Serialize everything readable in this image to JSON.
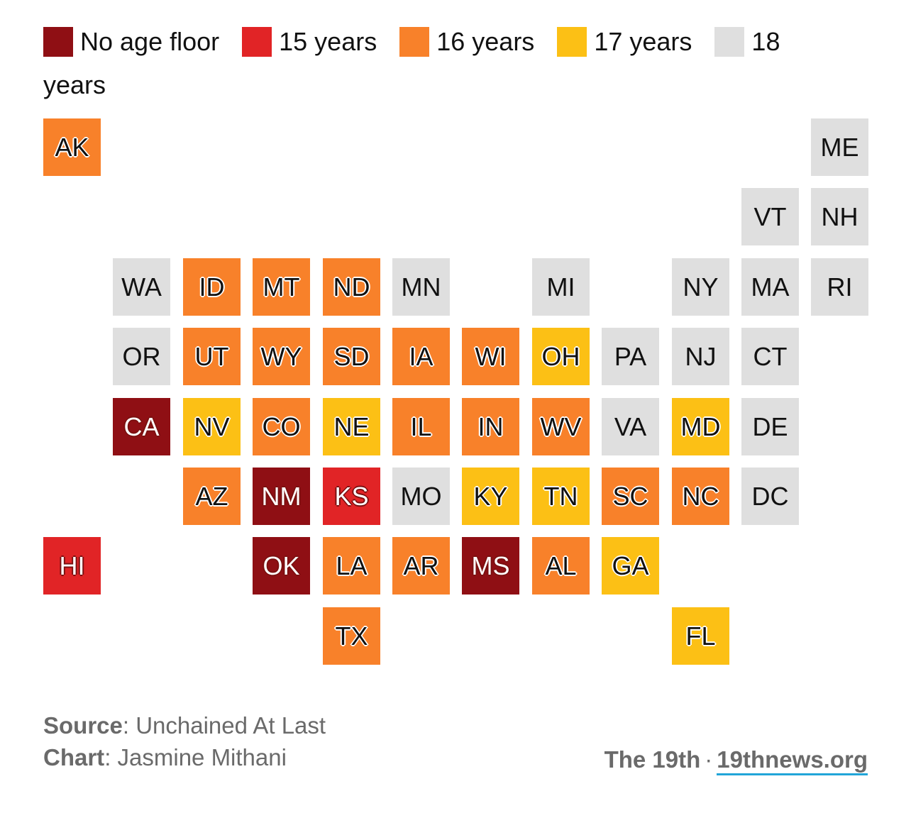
{
  "legend": [
    {
      "label": "No age floor",
      "color": "#8f0f14"
    },
    {
      "label": "15 years",
      "color": "#e12426"
    },
    {
      "label": "16 years",
      "color": "#f8812a"
    },
    {
      "label": "17 years",
      "color": "#fcc015"
    },
    {
      "label": "18 years",
      "color": "#dfdfdf"
    }
  ],
  "chart_data": {
    "type": "tile-map",
    "categories": [
      "No age floor",
      "15 years",
      "16 years",
      "17 years",
      "18 years"
    ],
    "states": [
      {
        "abbr": "AK",
        "col": 0,
        "row": 0,
        "category": "16 years"
      },
      {
        "abbr": "ME",
        "col": 11,
        "row": 0,
        "category": "18 years"
      },
      {
        "abbr": "VT",
        "col": 10,
        "row": 1,
        "category": "18 years"
      },
      {
        "abbr": "NH",
        "col": 11,
        "row": 1,
        "category": "18 years"
      },
      {
        "abbr": "WA",
        "col": 1,
        "row": 2,
        "category": "18 years"
      },
      {
        "abbr": "ID",
        "col": 2,
        "row": 2,
        "category": "16 years"
      },
      {
        "abbr": "MT",
        "col": 3,
        "row": 2,
        "category": "16 years"
      },
      {
        "abbr": "ND",
        "col": 4,
        "row": 2,
        "category": "16 years"
      },
      {
        "abbr": "MN",
        "col": 5,
        "row": 2,
        "category": "18 years"
      },
      {
        "abbr": "MI",
        "col": 7,
        "row": 2,
        "category": "18 years"
      },
      {
        "abbr": "NY",
        "col": 9,
        "row": 2,
        "category": "18 years"
      },
      {
        "abbr": "MA",
        "col": 10,
        "row": 2,
        "category": "18 years"
      },
      {
        "abbr": "RI",
        "col": 11,
        "row": 2,
        "category": "18 years"
      },
      {
        "abbr": "OR",
        "col": 1,
        "row": 3,
        "category": "18 years"
      },
      {
        "abbr": "UT",
        "col": 2,
        "row": 3,
        "category": "16 years"
      },
      {
        "abbr": "WY",
        "col": 3,
        "row": 3,
        "category": "16 years"
      },
      {
        "abbr": "SD",
        "col": 4,
        "row": 3,
        "category": "16 years"
      },
      {
        "abbr": "IA",
        "col": 5,
        "row": 3,
        "category": "16 years"
      },
      {
        "abbr": "WI",
        "col": 6,
        "row": 3,
        "category": "16 years"
      },
      {
        "abbr": "OH",
        "col": 7,
        "row": 3,
        "category": "17 years"
      },
      {
        "abbr": "PA",
        "col": 8,
        "row": 3,
        "category": "18 years"
      },
      {
        "abbr": "NJ",
        "col": 9,
        "row": 3,
        "category": "18 years"
      },
      {
        "abbr": "CT",
        "col": 10,
        "row": 3,
        "category": "18 years"
      },
      {
        "abbr": "CA",
        "col": 1,
        "row": 4,
        "category": "No age floor"
      },
      {
        "abbr": "NV",
        "col": 2,
        "row": 4,
        "category": "17 years"
      },
      {
        "abbr": "CO",
        "col": 3,
        "row": 4,
        "category": "16 years"
      },
      {
        "abbr": "NE",
        "col": 4,
        "row": 4,
        "category": "17 years"
      },
      {
        "abbr": "IL",
        "col": 5,
        "row": 4,
        "category": "16 years"
      },
      {
        "abbr": "IN",
        "col": 6,
        "row": 4,
        "category": "16 years"
      },
      {
        "abbr": "WV",
        "col": 7,
        "row": 4,
        "category": "16 years"
      },
      {
        "abbr": "VA",
        "col": 8,
        "row": 4,
        "category": "18 years"
      },
      {
        "abbr": "MD",
        "col": 9,
        "row": 4,
        "category": "17 years"
      },
      {
        "abbr": "DE",
        "col": 10,
        "row": 4,
        "category": "18 years"
      },
      {
        "abbr": "AZ",
        "col": 2,
        "row": 5,
        "category": "16 years"
      },
      {
        "abbr": "NM",
        "col": 3,
        "row": 5,
        "category": "No age floor"
      },
      {
        "abbr": "KS",
        "col": 4,
        "row": 5,
        "category": "15 years"
      },
      {
        "abbr": "MO",
        "col": 5,
        "row": 5,
        "category": "18 years"
      },
      {
        "abbr": "KY",
        "col": 6,
        "row": 5,
        "category": "17 years"
      },
      {
        "abbr": "TN",
        "col": 7,
        "row": 5,
        "category": "17 years"
      },
      {
        "abbr": "SC",
        "col": 8,
        "row": 5,
        "category": "16 years"
      },
      {
        "abbr": "NC",
        "col": 9,
        "row": 5,
        "category": "16 years"
      },
      {
        "abbr": "DC",
        "col": 10,
        "row": 5,
        "category": "18 years"
      },
      {
        "abbr": "HI",
        "col": 0,
        "row": 6,
        "category": "15 years"
      },
      {
        "abbr": "OK",
        "col": 3,
        "row": 6,
        "category": "No age floor"
      },
      {
        "abbr": "LA",
        "col": 4,
        "row": 6,
        "category": "16 years"
      },
      {
        "abbr": "AR",
        "col": 5,
        "row": 6,
        "category": "16 years"
      },
      {
        "abbr": "MS",
        "col": 6,
        "row": 6,
        "category": "No age floor"
      },
      {
        "abbr": "AL",
        "col": 7,
        "row": 6,
        "category": "16 years"
      },
      {
        "abbr": "GA",
        "col": 8,
        "row": 6,
        "category": "17 years"
      },
      {
        "abbr": "TX",
        "col": 4,
        "row": 7,
        "category": "16 years"
      },
      {
        "abbr": "FL",
        "col": 9,
        "row": 7,
        "category": "17 years"
      }
    ]
  },
  "footer": {
    "source_label": "Source",
    "source_value": ": Unchained At Last",
    "chart_label": "Chart",
    "chart_value": ": Jasmine Mithani",
    "publisher": "The 19th",
    "separator": "·",
    "site": "19thnews.org"
  }
}
